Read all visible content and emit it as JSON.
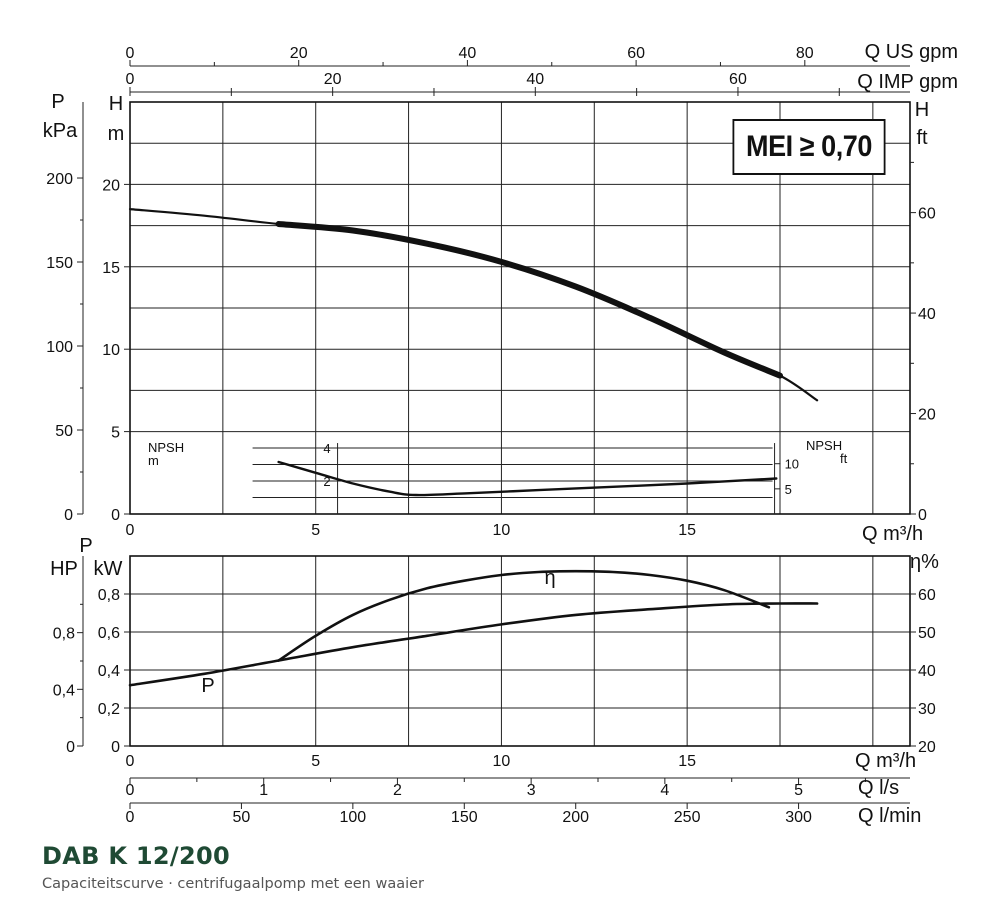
{
  "mei_label": "MEI ≥ 0,70",
  "footer": {
    "title": "DAB K 12/200",
    "subtitle": "Capaciteitscurve  ·  centrifugaalpomp met een waaier"
  },
  "chart_data": [
    {
      "type": "line",
      "panel": "head-flow",
      "x_unit": "Q m³/h",
      "xlim": [
        0,
        21
      ],
      "x_ticks": [
        "0",
        "5",
        "10",
        "15"
      ],
      "x_ticks_values": [
        0,
        5,
        10,
        15
      ],
      "left_axis_kpa": {
        "label": [
          "P",
          "kPa"
        ],
        "ticks": [
          "0",
          "50",
          "100",
          "150",
          "200"
        ],
        "values": [
          0,
          50,
          100,
          150,
          200
        ]
      },
      "left_axis_m": {
        "label": [
          "H",
          "m"
        ],
        "ticks": [
          "0",
          "5",
          "10",
          "15",
          "20"
        ],
        "values": [
          0,
          5,
          10,
          15,
          20
        ],
        "ylim": [
          0,
          25
        ]
      },
      "right_axis_ft": {
        "label": [
          "H",
          "ft"
        ],
        "ticks": [
          "0",
          "20",
          "40",
          "60"
        ],
        "values": [
          0,
          20,
          40,
          60
        ]
      },
      "top_axis_us_gpm": {
        "label": "Q US gpm",
        "ticks": [
          "0",
          "20",
          "40",
          "60",
          "80"
        ],
        "values": [
          0,
          20,
          40,
          60,
          80
        ]
      },
      "top_axis_imp_gpm": {
        "label": "Q IMP gpm",
        "ticks": [
          "0",
          "20",
          "40",
          "60"
        ],
        "values": [
          0,
          20,
          40,
          60
        ]
      },
      "series": [
        {
          "x": [
            0,
            2,
            4,
            6,
            8,
            10,
            12,
            14,
            16,
            17.5,
            18.5
          ],
          "y": [
            18.5,
            18.1,
            17.6,
            17.2,
            16.4,
            15.3,
            13.8,
            11.9,
            9.8,
            8.4,
            6.9
          ]
        }
      ]
    },
    {
      "type": "line",
      "panel": "npsh",
      "npsh_left": {
        "label": [
          "NPSH",
          "m"
        ],
        "ticks": [
          "2",
          "4"
        ],
        "values": [
          2,
          4
        ],
        "ylim": [
          0,
          4.5
        ]
      },
      "npsh_right": {
        "label": [
          "NPSH",
          "ft"
        ],
        "ticks": [
          "5",
          "10"
        ],
        "values": [
          5,
          10
        ]
      },
      "series": [
        {
          "x": [
            4,
            5,
            6,
            7,
            7.7,
            9,
            11,
            13,
            15,
            17.4
          ],
          "y": [
            3.15,
            2.5,
            1.85,
            1.35,
            1.15,
            1.25,
            1.45,
            1.65,
            1.85,
            2.15
          ]
        }
      ]
    },
    {
      "type": "line",
      "panel": "power-efficiency",
      "x_unit": "Q m³/h",
      "x_ticks": [
        "0",
        "5",
        "10",
        "15"
      ],
      "x_ticks_values": [
        0,
        5,
        10,
        15
      ],
      "left_axis_hp": {
        "label": "HP",
        "ticks": [
          "0",
          "0,4",
          "0,8"
        ],
        "values": [
          0,
          0.4,
          0.8
        ]
      },
      "left_axis_kw": {
        "label": [
          "P",
          "kW"
        ],
        "ticks": [
          "0",
          "0,2",
          "0,4",
          "0,6",
          "0,8"
        ],
        "values": [
          0,
          0.2,
          0.4,
          0.6,
          0.8
        ],
        "ylim": [
          0,
          1.0
        ]
      },
      "right_axis_eta": {
        "label": "η%",
        "ticks": [
          "20",
          "30",
          "40",
          "50",
          "60"
        ],
        "values": [
          20,
          30,
          40,
          50,
          60
        ],
        "ylim": [
          20,
          70
        ]
      },
      "curve_labels": {
        "power": "P",
        "efficiency": "η"
      },
      "power_series": {
        "x": [
          0,
          2,
          4,
          6,
          8,
          10,
          12,
          14,
          16,
          17.5,
          18.5
        ],
        "y": [
          0.32,
          0.38,
          0.45,
          0.52,
          0.58,
          0.64,
          0.69,
          0.72,
          0.745,
          0.75,
          0.75
        ]
      },
      "efficiency_series": {
        "x": [
          4,
          5,
          6,
          7,
          8,
          9,
          10,
          11,
          12,
          13,
          14,
          15,
          16,
          17.2
        ],
        "y": [
          42.5,
          49,
          54.5,
          58.5,
          61.5,
          63.5,
          65,
          65.8,
          66,
          65.8,
          65,
          63.5,
          61,
          56.5
        ]
      }
    }
  ],
  "bottom_axes": {
    "q_ls": {
      "label": "Q l/s",
      "ticks": [
        "0",
        "1",
        "2",
        "3",
        "4",
        "5"
      ],
      "values": [
        0,
        1,
        2,
        3,
        4,
        5
      ]
    },
    "q_lmin": {
      "label": "Q l/min",
      "ticks": [
        "0",
        "50",
        "100",
        "150",
        "200",
        "250",
        "300"
      ],
      "values": [
        0,
        50,
        100,
        150,
        200,
        250,
        300
      ]
    }
  }
}
